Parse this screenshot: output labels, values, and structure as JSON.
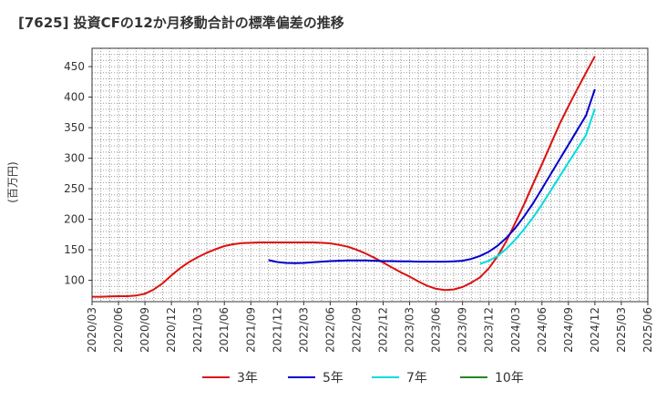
{
  "chart_data": {
    "type": "line",
    "title": "[7625]  投資CFの12か月移動合計の標準偏差の推移",
    "ylabel": "(百万円)",
    "xlabel": "",
    "ylim": [
      65,
      480
    ],
    "xlim": [
      "2020/03",
      "2025/06"
    ],
    "yticks": [
      100,
      150,
      200,
      250,
      300,
      350,
      400,
      450
    ],
    "xticks": [
      "2020/03",
      "2020/06",
      "2020/09",
      "2020/12",
      "2021/03",
      "2021/06",
      "2021/09",
      "2021/12",
      "2022/03",
      "2022/06",
      "2022/09",
      "2022/12",
      "2023/03",
      "2023/06",
      "2023/09",
      "2023/12",
      "2024/03",
      "2024/06",
      "2024/09",
      "2024/12",
      "2025/03",
      "2025/06"
    ],
    "grid": true,
    "legend_position": "bottom",
    "series": [
      {
        "name": "3年",
        "color": "#dd1111",
        "x": [
          "2020/03",
          "2020/04",
          "2020/05",
          "2020/06",
          "2020/07",
          "2020/08",
          "2020/09",
          "2020/10",
          "2020/11",
          "2020/12",
          "2021/01",
          "2021/02",
          "2021/03",
          "2021/04",
          "2021/05",
          "2021/06",
          "2021/07",
          "2021/08",
          "2021/09",
          "2021/10",
          "2021/11",
          "2021/12",
          "2022/01",
          "2022/02",
          "2022/03",
          "2022/04",
          "2022/05",
          "2022/06",
          "2022/07",
          "2022/08",
          "2022/09",
          "2022/10",
          "2022/11",
          "2022/12",
          "2023/01",
          "2023/02",
          "2023/03",
          "2023/04",
          "2023/05",
          "2023/06",
          "2023/07",
          "2023/08",
          "2023/09",
          "2023/10",
          "2023/11",
          "2023/12",
          "2024/01",
          "2024/02",
          "2024/03",
          "2024/04",
          "2024/05",
          "2024/06",
          "2024/07",
          "2024/08",
          "2024/09",
          "2024/10",
          "2024/11",
          "2024/12"
        ],
        "values": [
          73,
          73,
          73.5,
          74,
          74,
          75,
          78,
          85,
          95,
          108,
          120,
          130,
          138,
          145,
          151,
          156,
          159,
          161,
          161.5,
          162,
          162,
          162,
          162,
          162,
          162,
          162,
          161.5,
          160.5,
          158,
          155,
          150,
          144,
          137,
          129,
          121,
          113,
          106,
          98,
          91,
          86,
          84,
          85,
          89,
          96,
          105,
          120,
          140,
          165,
          195,
          225,
          258,
          290,
          323,
          356,
          385,
          413,
          440,
          467
        ]
      },
      {
        "name": "5年",
        "color": "#0000cc",
        "x": [
          "2021/11",
          "2021/12",
          "2022/01",
          "2022/02",
          "2022/03",
          "2022/04",
          "2022/05",
          "2022/06",
          "2022/07",
          "2022/08",
          "2022/09",
          "2022/10",
          "2022/11",
          "2022/12",
          "2023/01",
          "2023/02",
          "2023/03",
          "2023/04",
          "2023/05",
          "2023/06",
          "2023/07",
          "2023/08",
          "2023/09",
          "2023/10",
          "2023/11",
          "2023/12",
          "2024/01",
          "2024/02",
          "2024/03",
          "2024/04",
          "2024/05",
          "2024/06",
          "2024/07",
          "2024/08",
          "2024/09",
          "2024/10",
          "2024/11",
          "2024/12"
        ],
        "values": [
          133,
          130,
          128.5,
          128,
          128.5,
          129.5,
          130.5,
          131.5,
          132,
          132.5,
          132.5,
          132.5,
          132,
          131.5,
          131.5,
          131,
          131,
          130.5,
          130.5,
          130.5,
          130.5,
          131,
          132,
          135,
          140,
          147,
          157,
          170,
          186,
          205,
          226,
          250,
          274,
          298,
          322,
          346,
          370,
          413
        ]
      },
      {
        "name": "7年",
        "color": "#00dddd",
        "x": [
          "2023/11",
          "2023/12",
          "2024/01",
          "2024/02",
          "2024/03",
          "2024/04",
          "2024/05",
          "2024/06",
          "2024/07",
          "2024/08",
          "2024/09",
          "2024/10",
          "2024/11",
          "2024/12"
        ],
        "values": [
          127,
          132,
          140,
          152,
          167,
          184,
          203,
          224,
          247,
          270,
          293,
          315,
          338,
          381
        ]
      },
      {
        "name": "10年",
        "color": "#228822",
        "x": [],
        "values": []
      }
    ]
  }
}
